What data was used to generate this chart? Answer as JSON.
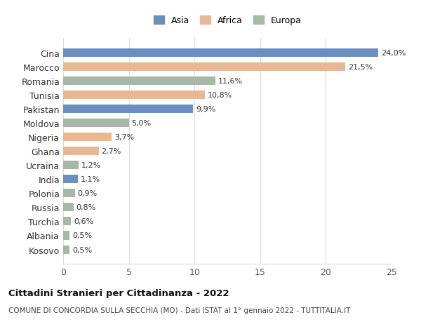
{
  "categories": [
    "Kosovo",
    "Albania",
    "Turchia",
    "Russia",
    "Polonia",
    "India",
    "Ucraina",
    "Ghana",
    "Nigeria",
    "Moldova",
    "Pakistan",
    "Tunisia",
    "Romania",
    "Marocco",
    "Cina"
  ],
  "values": [
    0.5,
    0.5,
    0.6,
    0.8,
    0.9,
    1.1,
    1.2,
    2.7,
    3.7,
    5.0,
    9.9,
    10.8,
    11.6,
    21.5,
    24.0
  ],
  "labels": [
    "0,5%",
    "0,5%",
    "0,6%",
    "0,8%",
    "0,9%",
    "1,1%",
    "1,2%",
    "2,7%",
    "3,7%",
    "5,0%",
    "9,9%",
    "10,8%",
    "11,6%",
    "21,5%",
    "24,0%"
  ],
  "colors": [
    "#a8b8a8",
    "#a8b8a8",
    "#a8b8a8",
    "#a8b8a8",
    "#a8b8a8",
    "#6b8fbf",
    "#a8b8a8",
    "#e8b896",
    "#e8b896",
    "#a8b8a8",
    "#6b8fbf",
    "#e8b896",
    "#a8b8a8",
    "#e8b896",
    "#6b8fbf"
  ],
  "continent_colors": {
    "Asia": "#6b8fbf",
    "Africa": "#e8b896",
    "Europa": "#a8b8a8"
  },
  "legend_labels": [
    "Asia",
    "Africa",
    "Europa"
  ],
  "title": "Cittadini Stranieri per Cittadinanza - 2022",
  "subtitle": "COMUNE DI CONCORDIA SULLA SECCHIA (MO) - Dati ISTAT al 1° gennaio 2022 - TUTTITALIA.IT",
  "xlim": [
    0,
    25
  ],
  "xticks": [
    0,
    5,
    10,
    15,
    20,
    25
  ],
  "background_color": "#ffffff",
  "grid_color": "#dddddd"
}
